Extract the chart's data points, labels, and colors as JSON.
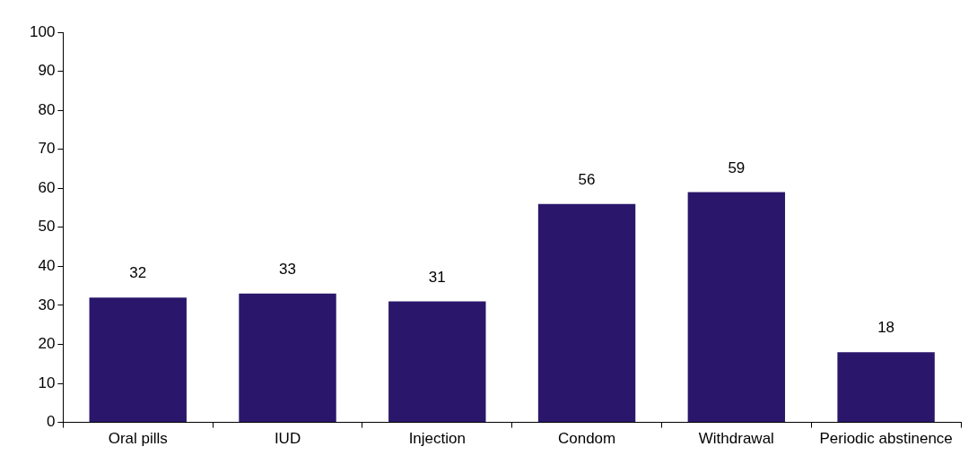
{
  "chart_data": {
    "type": "bar",
    "categories": [
      "Oral pills",
      "IUD",
      "Injection",
      "Condom",
      "Withdrawal",
      "Periodic abstinence"
    ],
    "values": [
      32,
      33,
      31,
      56,
      59,
      18
    ],
    "color": "#2a176b",
    "ylim": [
      0,
      100
    ],
    "yticks": [
      0,
      10,
      20,
      30,
      40,
      50,
      60,
      70,
      80,
      90,
      100
    ],
    "grid": false,
    "legend": false,
    "data_labels": true
  }
}
